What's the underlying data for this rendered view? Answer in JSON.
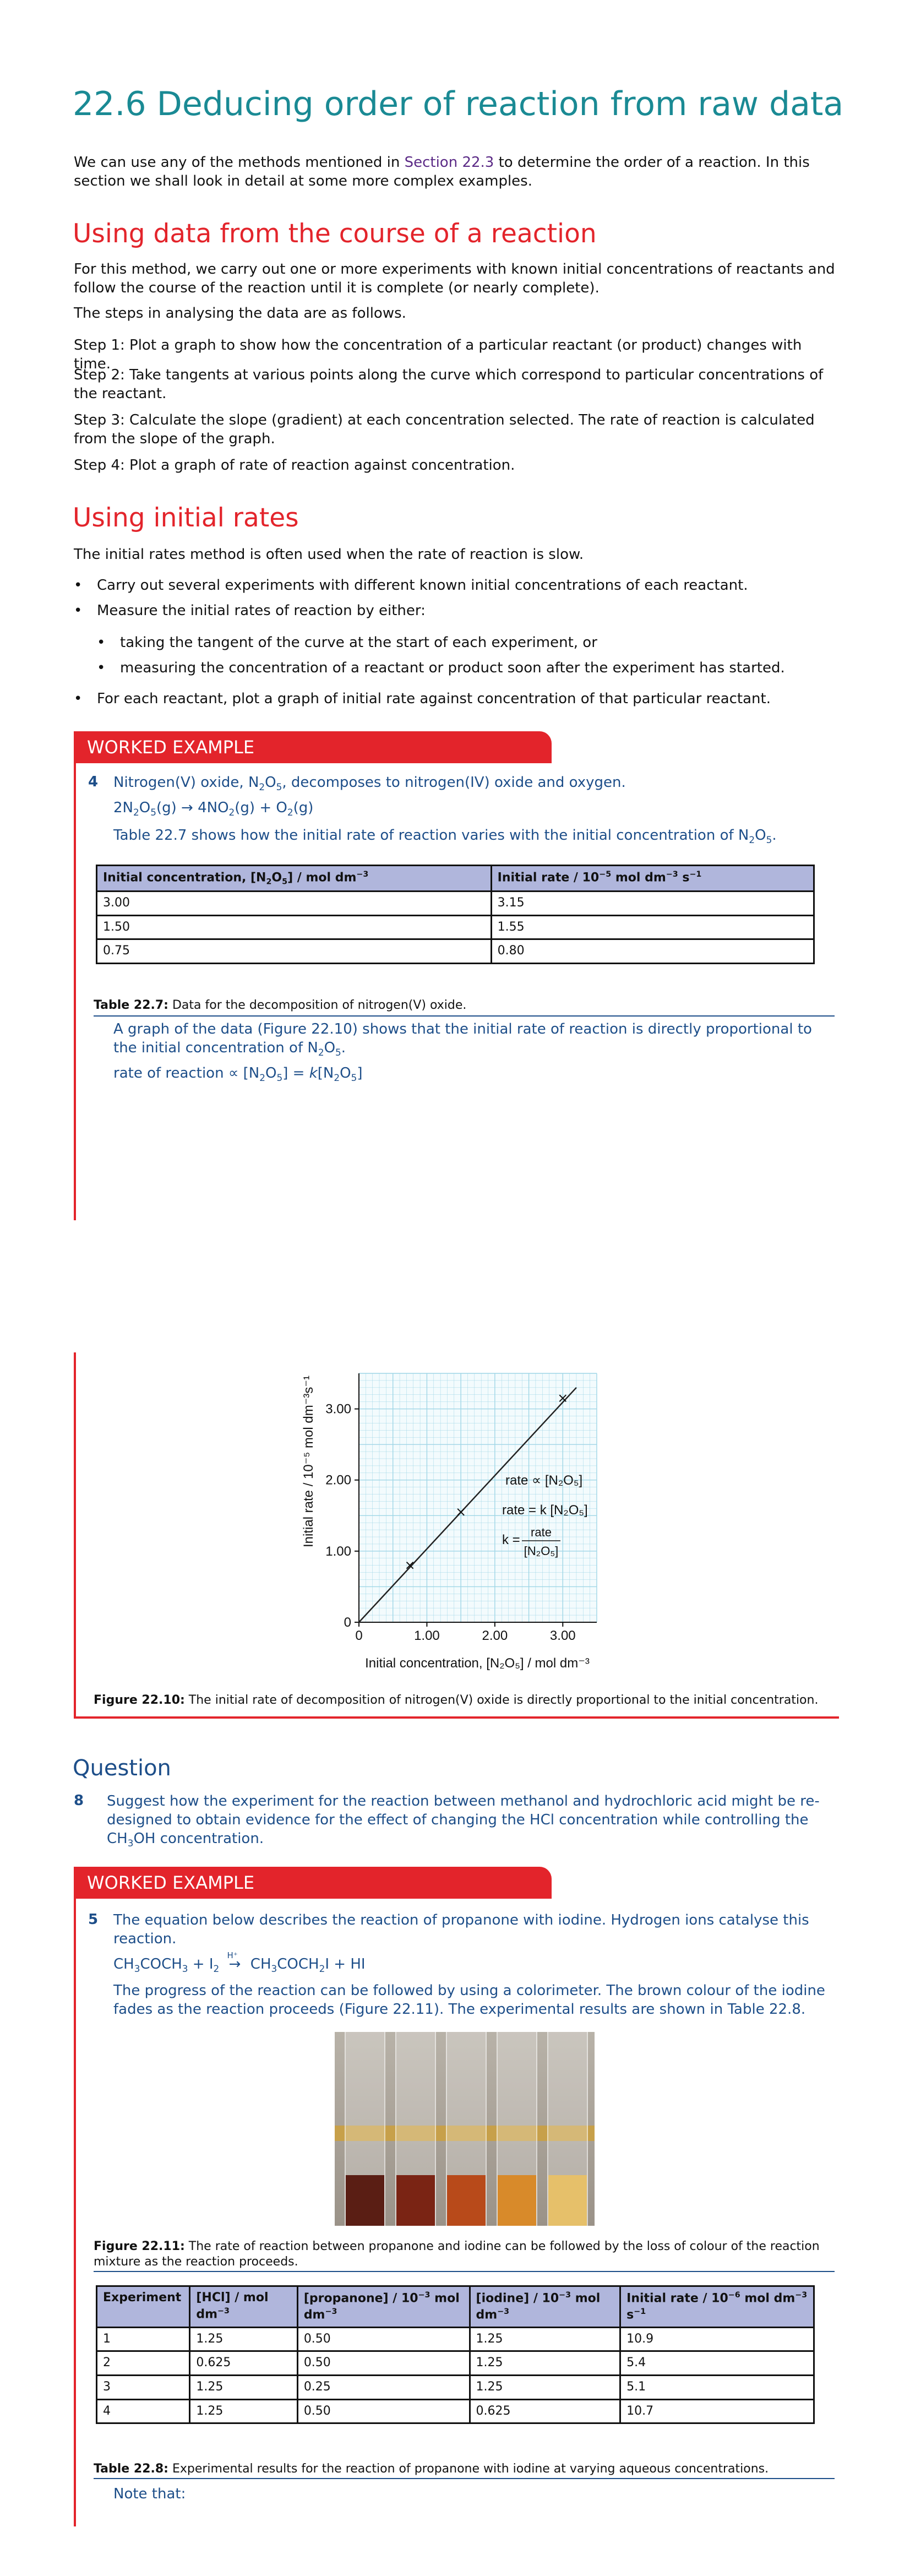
{
  "title": "22.6 Deducing order of reaction from raw data",
  "intro": {
    "before": "We can use any of the methods mentioned in ",
    "link": "Section 22.3",
    "after": " to determine the order of a reaction. In this section we shall look in detail at some more complex examples."
  },
  "section1": {
    "heading": "Using data from the course of a reaction",
    "p1": "For this method, we carry out one or more experiments with known initial concentrations of reactants and follow the course of the reaction until it is complete (or nearly complete).",
    "p2": "The steps in analysing the data are as follows.",
    "step1": "Step 1: Plot a graph to show how the concentration of a particular reactant (or product) changes with time.",
    "step2": "Step 2: Take tangents at various points along the curve which correspond to particular concentrations of the reactant.",
    "step3": "Step 3: Calculate the slope (gradient) at each concentration selected. The rate of reaction is calculated from the slope of the graph.",
    "step4": "Step 4: Plot a graph of rate of reaction against concentration."
  },
  "section2": {
    "heading": "Using initial rates",
    "p1": "The initial rates method is often used when the rate of reaction is slow.",
    "b1": "Carry out several experiments with different known initial concentrations of each reactant.",
    "b2": "Measure the initial rates of reaction by either:",
    "b2a": "taking the tangent of the curve at the start of each experiment, or",
    "b2b": "measuring the concentration of a reactant or product soon after the experiment has started.",
    "b3": "For each reactant, plot a graph of initial rate against concentration of that particular reactant."
  },
  "worked4": {
    "bar_label": "WORKED EXAMPLE",
    "number": "4",
    "line1_a": "Nitrogen(V) oxide, N",
    "line1_s1": "2",
    "line1_b": "O",
    "line1_s2": "5",
    "line1_c": ", decomposes to nitrogen(IV) oxide and oxygen.",
    "eq_a": "2N",
    "eq_s1": "2",
    "eq_b": "O",
    "eq_s2": "5",
    "eq_c": "(g) → 4NO",
    "eq_s3": "2",
    "eq_d": "(g) + O",
    "eq_s4": "2",
    "eq_e": "(g)",
    "line3_a": "Table 22.7 shows how the initial rate of reaction varies with the initial concentration of N",
    "line3_s1": "2",
    "line3_b": "O",
    "line3_s2": "5",
    "line3_c": ".",
    "table": {
      "col1_a": "Initial concentration, [N",
      "col1_s1": "2",
      "col1_b": "O",
      "col1_s2": "5",
      "col1_c": "] / mol dm",
      "col1_sup": "−3",
      "col2_a": "Initial rate / 10",
      "col2_sup1": "−5",
      "col2_b": " mol dm",
      "col2_sup2": "−3",
      "col2_c": " s",
      "col2_sup3": "−1",
      "rows": [
        [
          "3.00",
          "3.15"
        ],
        [
          "1.50",
          "1.55"
        ],
        [
          "0.75",
          "0.80"
        ]
      ]
    },
    "caption_label": "Table 22.7:",
    "caption_text": " Data for the decomposition of nitrogen(V) oxide.",
    "ans1_a": "A graph of the data (Figure 22.10) shows that the initial rate of reaction is directly proportional to the initial concentration of N",
    "ans1_s1": "2",
    "ans1_b": "O",
    "ans1_s2": "5",
    "ans1_c": ".",
    "ans2_a": "rate of reaction ∝ [N",
    "ans2_s1": "2",
    "ans2_b": "O",
    "ans2_s2": "5",
    "ans2_c": "] = ",
    "ans2_k": "k",
    "ans2_d": "[N",
    "ans2_s3": "2",
    "ans2_e": "O",
    "ans2_s4": "5",
    "ans2_f": "]"
  },
  "figure_22_10": {
    "caption_label": "Figure 22.10:",
    "caption_text": " The initial rate of decomposition of nitrogen(V) oxide is directly proportional to the initial concentration.",
    "ylabel": "Initial rate / 10⁻⁵ mol dm⁻³s⁻¹",
    "xlabel": "Initial concentration, [N₂O₅] / mol dm⁻³",
    "ann1": "rate ∝ [N₂O₅]",
    "ann2": "rate = k [N₂O₅]",
    "ann3_k": "k =",
    "ann3_num": "rate",
    "ann3_den": "[N₂O₅]"
  },
  "chart_data": {
    "type": "line",
    "xlabel": "Initial concentration, [N₂O₅] / mol dm⁻³",
    "ylabel": "Initial rate / 10⁻⁵ mol dm⁻³s⁻¹",
    "x_ticks": [
      "0",
      "1.00",
      "2.00",
      "3.00"
    ],
    "y_ticks": [
      "0",
      "1.00",
      "2.00",
      "3.00"
    ],
    "xlim": [
      0,
      3.5
    ],
    "ylim": [
      0,
      3.5
    ],
    "grid": true,
    "points": [
      {
        "x": 0.75,
        "y": 0.8
      },
      {
        "x": 1.5,
        "y": 1.55
      },
      {
        "x": 3.0,
        "y": 3.15
      }
    ],
    "line": [
      {
        "x": 0,
        "y": 0
      },
      {
        "x": 3.2,
        "y": 3.3
      }
    ],
    "line_color": "#222222",
    "grid_color": "#9fd6e6"
  },
  "question": {
    "heading": "Question",
    "number": "8",
    "text_a": "Suggest how the experiment for the reaction between methanol and hydrochloric acid might be re-designed to obtain evidence for the effect of changing the HCl concentration while controlling the CH",
    "text_s": "3",
    "text_b": "OH concentration."
  },
  "worked5": {
    "bar_label": "WORKED EXAMPLE",
    "number": "5",
    "line1": "The equation below describes the reaction of propanone with iodine. Hydrogen ions catalyse this reaction.",
    "eq_a": "CH",
    "eq_s1": "3",
    "eq_b": "COCH",
    "eq_s2": "3",
    "eq_c": " + I",
    "eq_s3": "2",
    "eq_arrow_label": "H⁺",
    "eq_d": " CH",
    "eq_s4": "3",
    "eq_e": "COCH",
    "eq_s5": "2",
    "eq_f": "I + HI",
    "line3": "The progress of the reaction can be followed by using a colorimeter. The brown colour of the iodine fades as the reaction proceeds (Figure 22.11). The experimental results are shown in Table 22.8.",
    "fig_caption_label": "Figure 22.11:",
    "fig_caption_text": " The rate of reaction between propanone and iodine can be followed by the loss of colour of the reaction mixture as the reaction proceeds.",
    "table": {
      "h1": "Experiment",
      "h2_a": "[HCl] / mol dm",
      "h2_sup": "−3",
      "h3_a": "[propanone] / 10",
      "h3_sup1": "−3",
      "h3_b": " mol dm",
      "h3_sup2": "−3",
      "h4_a": "[iodine] / 10",
      "h4_sup1": "−3",
      "h4_b": " mol dm",
      "h4_sup2": "−3",
      "h5_a": "Initial rate / 10",
      "h5_sup1": "−6",
      "h5_b": " mol dm",
      "h5_sup2": "−3",
      "h5_c": " s",
      "h5_sup3": "−1",
      "rows": [
        [
          "1",
          "1.25",
          "0.50",
          "1.25",
          "10.9"
        ],
        [
          "2",
          "0.625",
          "0.50",
          "1.25",
          "5.4"
        ],
        [
          "3",
          "1.25",
          "0.25",
          "1.25",
          "5.1"
        ],
        [
          "4",
          "1.25",
          "0.50",
          "0.625",
          "10.7"
        ]
      ]
    },
    "table_caption_label": "Table 22.8:",
    "table_caption_text": " Experimental results for the reaction of propanone with iodine at varying aqueous concentrations.",
    "note": "Note that:"
  },
  "tube_colors": [
    "#5a1e14",
    "#7a2414",
    "#b84a1a",
    "#d88a2a",
    "#e6c06a"
  ]
}
